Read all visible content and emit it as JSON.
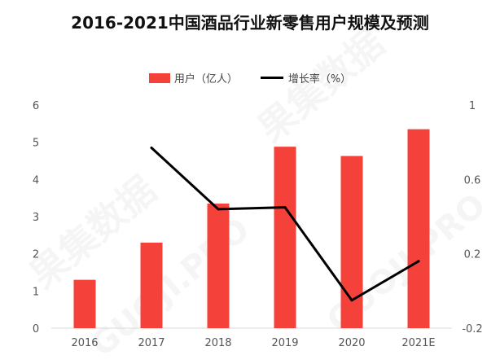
{
  "chart_data": {
    "type": "bar",
    "title": "2016-2021中国酒品行业新零售用户规模及预测",
    "categories": [
      "2016",
      "2017",
      "2018",
      "2019",
      "2020",
      "2021E"
    ],
    "series": [
      {
        "name": "用户（亿人）",
        "kind": "bar",
        "axis": "left",
        "color": "#f4423b",
        "values": [
          1.3,
          2.3,
          3.35,
          4.88,
          4.63,
          5.35
        ]
      },
      {
        "name": "增长率（%）",
        "kind": "line",
        "axis": "right",
        "color": "#000000",
        "values": [
          null,
          0.77,
          0.44,
          0.45,
          -0.05,
          0.16
        ]
      }
    ],
    "ylim_left": [
      0,
      6
    ],
    "yticks_left": [
      "0",
      "1",
      "2",
      "3",
      "4",
      "5",
      "6"
    ],
    "ylim_right": [
      -0.2,
      1
    ],
    "yticks_right": [
      "-0.2",
      "0.2",
      "0.6",
      "1"
    ],
    "legend_position": "top-center",
    "grid": false
  },
  "watermark": {
    "text1": "果集数据",
    "text2": "GUOJI.PRO"
  }
}
